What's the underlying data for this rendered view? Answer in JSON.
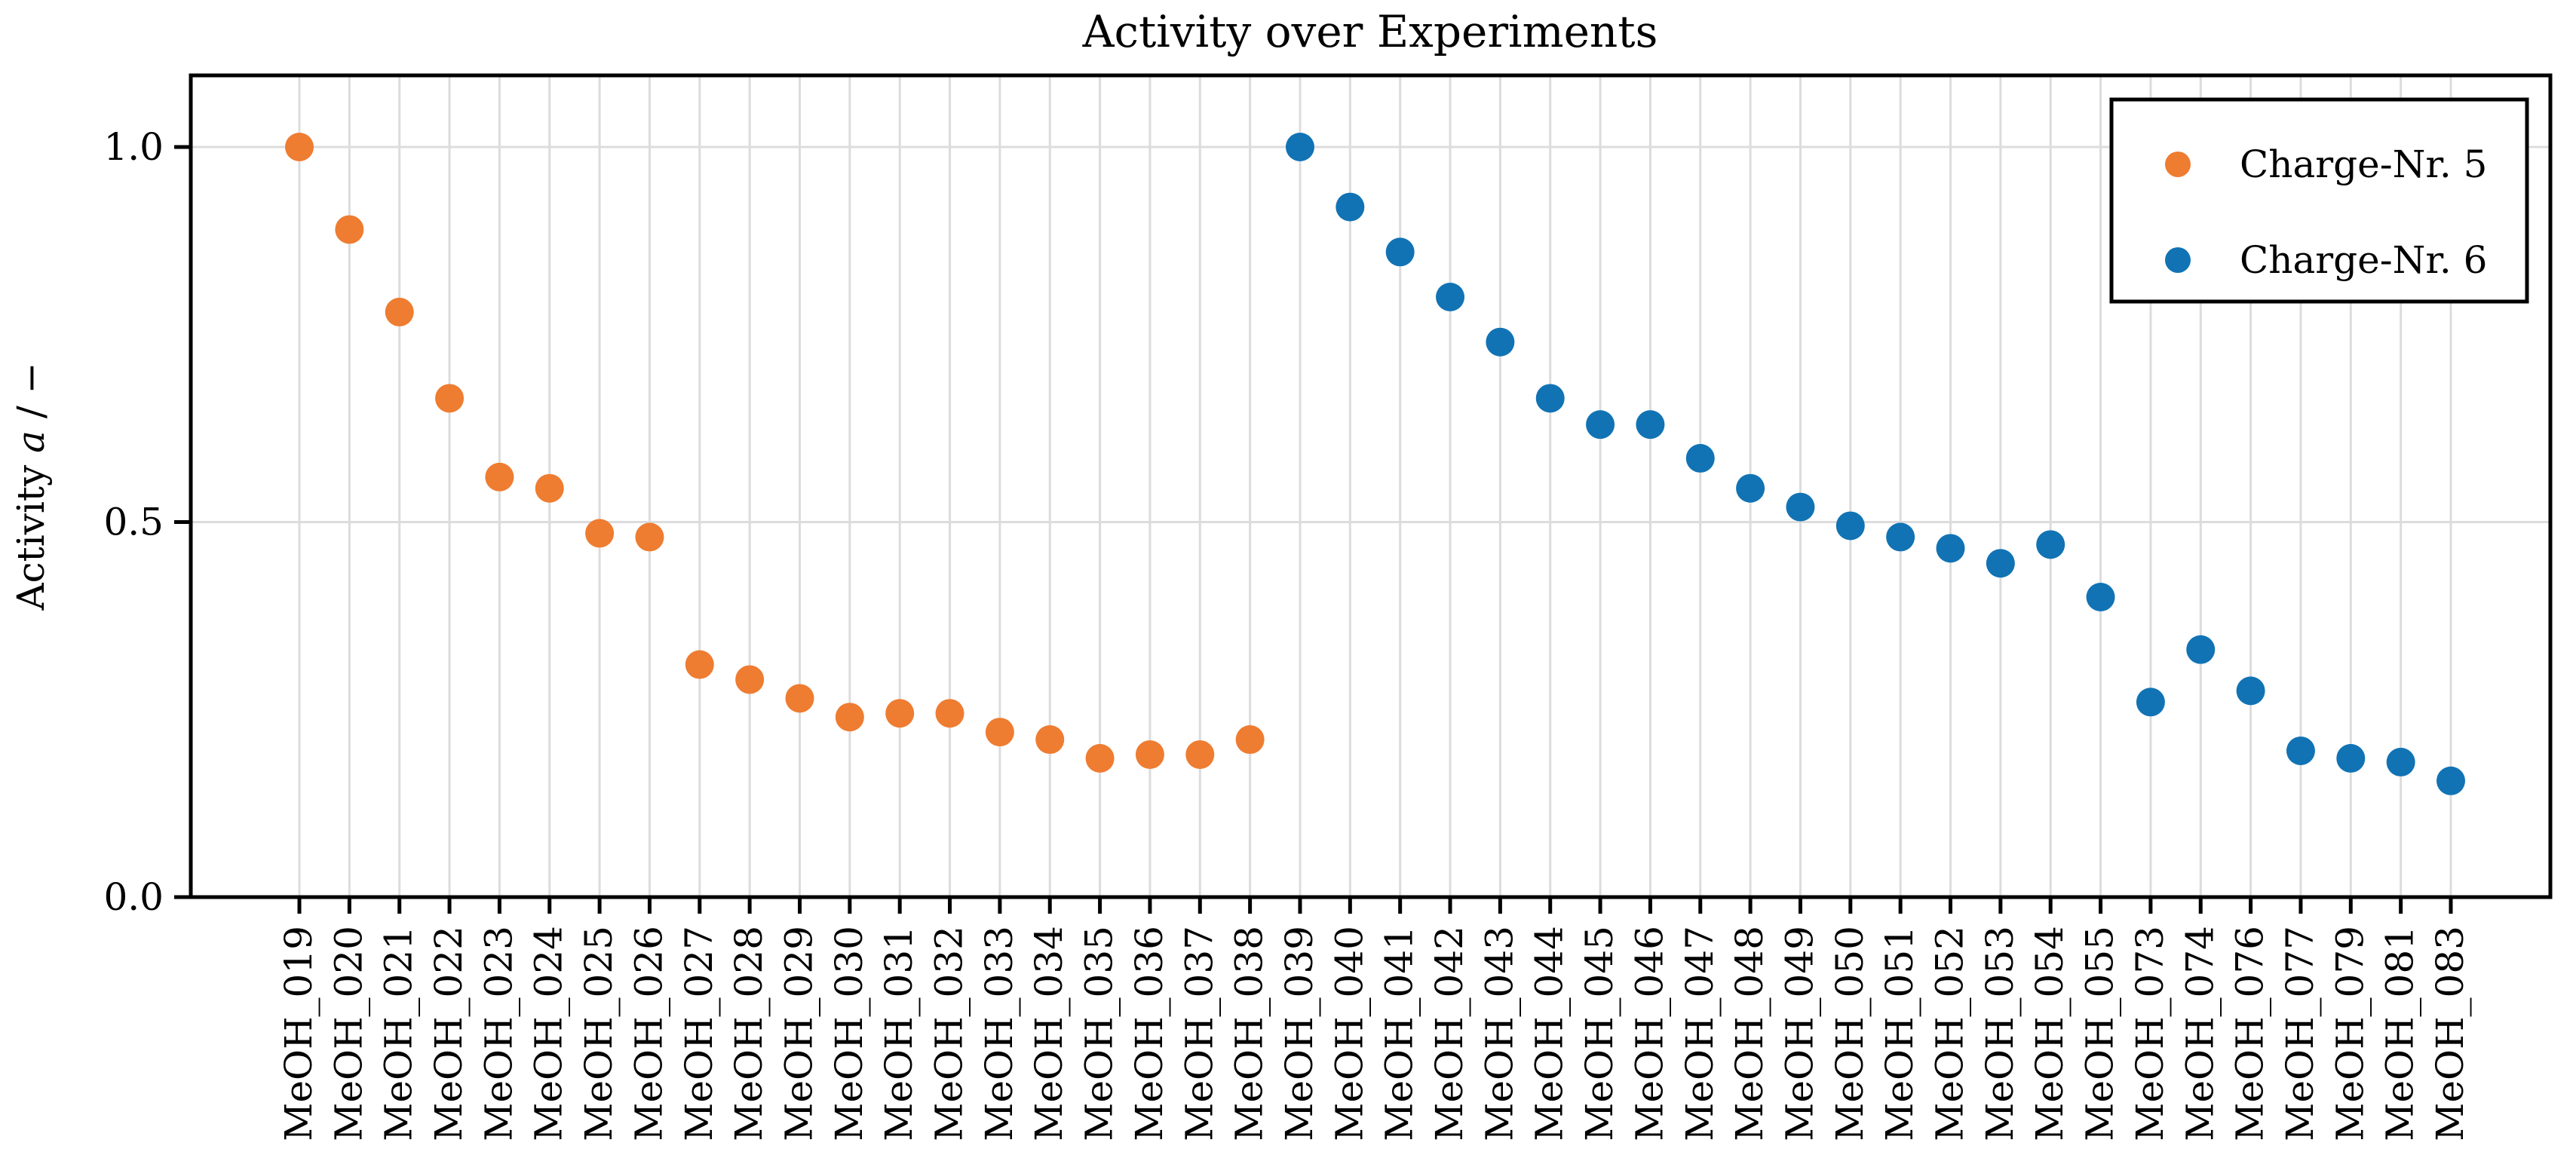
{
  "title": "Activity over Experiments",
  "y_axis": {
    "label_prefix": "Activity ",
    "label_math": "a",
    "label_suffix": " / −",
    "ticks": [
      {
        "label": "0.0",
        "value": 0.0
      },
      {
        "label": "0.5",
        "value": 0.5
      },
      {
        "label": "1.0",
        "value": 1.0
      }
    ]
  },
  "legend": [
    {
      "label": "Charge-Nr. 5",
      "color": "#ee7c31"
    },
    {
      "label": "Charge-Nr. 6",
      "color": "#1173b4"
    }
  ],
  "chart_data": {
    "type": "scatter",
    "title": "Activity over Experiments",
    "xlabel": "",
    "ylabel": "Activity a / −",
    "ylim": [
      0,
      1.1
    ],
    "grid": true,
    "legend_position": "upper right",
    "marker": "circle",
    "categories": [
      "MeOH_019",
      "MeOH_020",
      "MeOH_021",
      "MeOH_022",
      "MeOH_023",
      "MeOH_024",
      "MeOH_025",
      "MeOH_026",
      "MeOH_027",
      "MeOH_028",
      "MeOH_029",
      "MeOH_030",
      "MeOH_031",
      "MeOH_032",
      "MeOH_033",
      "MeOH_034",
      "MeOH_035",
      "MeOH_036",
      "MeOH_037",
      "MeOH_038",
      "MeOH_039",
      "MeOH_040",
      "MeOH_041",
      "MeOH_042",
      "MeOH_043",
      "MeOH_044",
      "MeOH_045",
      "MeOH_046",
      "MeOH_047",
      "MeOH_048",
      "MeOH_049",
      "MeOH_050",
      "MeOH_051",
      "MeOH_052",
      "MeOH_053",
      "MeOH_054",
      "MeOH_055",
      "MeOH_073",
      "MeOH_074",
      "MeOH_076",
      "MeOH_077",
      "MeOH_079",
      "MeOH_081",
      "MeOH_083"
    ],
    "series": [
      {
        "name": "Charge-Nr. 5",
        "color": "#ee7c31",
        "categories": [
          "MeOH_019",
          "MeOH_020",
          "MeOH_021",
          "MeOH_022",
          "MeOH_023",
          "MeOH_024",
          "MeOH_025",
          "MeOH_026",
          "MeOH_027",
          "MeOH_028",
          "MeOH_029",
          "MeOH_030",
          "MeOH_031",
          "MeOH_032",
          "MeOH_033",
          "MeOH_034",
          "MeOH_035",
          "MeOH_036",
          "MeOH_037",
          "MeOH_038"
        ],
        "values": [
          1.0,
          0.89,
          0.78,
          0.665,
          0.56,
          0.545,
          0.485,
          0.48,
          0.31,
          0.29,
          0.265,
          0.24,
          0.245,
          0.245,
          0.22,
          0.21,
          0.185,
          0.19,
          0.19,
          0.21
        ]
      },
      {
        "name": "Charge-Nr. 6",
        "color": "#1173b4",
        "categories": [
          "MeOH_039",
          "MeOH_040",
          "MeOH_041",
          "MeOH_042",
          "MeOH_043",
          "MeOH_044",
          "MeOH_045",
          "MeOH_046",
          "MeOH_047",
          "MeOH_048",
          "MeOH_049",
          "MeOH_050",
          "MeOH_051",
          "MeOH_052",
          "MeOH_053",
          "MeOH_054",
          "MeOH_055",
          "MeOH_073",
          "MeOH_074",
          "MeOH_076",
          "MeOH_077",
          "MeOH_079",
          "MeOH_081",
          "MeOH_083"
        ],
        "values": [
          1.0,
          0.92,
          0.86,
          0.8,
          0.74,
          0.665,
          0.63,
          0.63,
          0.585,
          0.545,
          0.52,
          0.495,
          0.48,
          0.465,
          0.445,
          0.47,
          0.4,
          0.26,
          0.33,
          0.275,
          0.195,
          0.185,
          0.18,
          0.155
        ]
      }
    ]
  }
}
